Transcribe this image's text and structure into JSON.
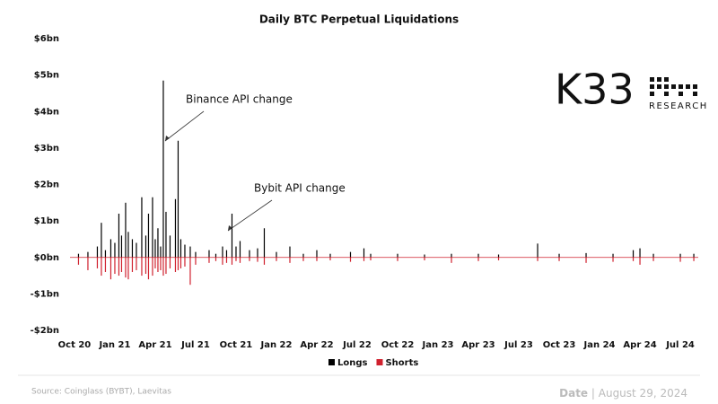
{
  "chart_data": {
    "type": "bar",
    "title": "Daily BTC Perpetual Liquidations",
    "x": [
      0.3,
      1,
      1.7,
      2,
      2.3,
      2.7,
      3,
      3.3,
      3.5,
      3.8,
      4,
      4.3,
      4.6,
      5,
      5.3,
      5.5,
      5.8,
      6,
      6.2,
      6.4,
      6.6,
      6.8,
      7.1,
      7.5,
      7.7,
      7.9,
      8.2,
      8.6,
      9,
      10,
      10.5,
      11,
      11.3,
      11.7,
      12,
      12.3,
      13,
      13.6,
      14.1,
      15,
      16,
      17,
      18,
      19,
      20.5,
      21.5,
      22,
      24,
      26,
      28,
      30,
      31.5,
      34.4,
      36,
      38,
      40,
      41.5,
      42,
      43,
      45,
      46
    ],
    "series": [
      {
        "name": "Longs",
        "color": "#000000",
        "values": [
          0.1,
          0.15,
          0.3,
          0.95,
          0.2,
          0.5,
          0.4,
          1.2,
          0.6,
          1.5,
          0.7,
          0.5,
          0.4,
          1.65,
          0.6,
          1.2,
          1.65,
          0.5,
          0.8,
          0.3,
          4.85,
          1.25,
          0.6,
          1.6,
          3.2,
          0.5,
          0.35,
          0.3,
          0.15,
          0.2,
          0.1,
          0.3,
          0.2,
          1.2,
          0.3,
          0.45,
          0.2,
          0.25,
          0.8,
          0.15,
          0.3,
          0.1,
          0.2,
          0.1,
          0.15,
          0.25,
          0.1,
          0.1,
          0.08,
          0.1,
          0.1,
          0.08,
          0.38,
          0.1,
          0.12,
          0.1,
          0.2,
          0.25,
          0.1,
          0.1,
          0.1
        ]
      },
      {
        "name": "Shorts",
        "color": "#d0212e",
        "values": [
          -0.2,
          -0.35,
          -0.3,
          -0.5,
          -0.4,
          -0.6,
          -0.45,
          -0.5,
          -0.4,
          -0.55,
          -0.6,
          -0.4,
          -0.35,
          -0.5,
          -0.45,
          -0.6,
          -0.5,
          -0.3,
          -0.4,
          -0.35,
          -0.5,
          -0.45,
          -0.3,
          -0.4,
          -0.35,
          -0.3,
          -0.25,
          -0.75,
          -0.2,
          -0.15,
          -0.1,
          -0.2,
          -0.15,
          -0.2,
          -0.1,
          -0.15,
          -0.1,
          -0.12,
          -0.2,
          -0.1,
          -0.15,
          -0.1,
          -0.1,
          -0.08,
          -0.12,
          -0.1,
          -0.08,
          -0.1,
          -0.08,
          -0.15,
          -0.1,
          -0.08,
          -0.1,
          -0.1,
          -0.15,
          -0.12,
          -0.1,
          -0.2,
          -0.1,
          -0.12,
          -0.1
        ]
      }
    ],
    "xlim": [
      -0.33,
      46.33
    ],
    "xticks": [
      {
        "value": 0,
        "label": "Oct 20"
      },
      {
        "value": 3,
        "label": "Jan 21"
      },
      {
        "value": 6,
        "label": "Apr 21"
      },
      {
        "value": 9,
        "label": "Jul 21"
      },
      {
        "value": 12,
        "label": "Oct 21"
      },
      {
        "value": 15,
        "label": "Jan 22"
      },
      {
        "value": 18,
        "label": "Apr 22"
      },
      {
        "value": 21,
        "label": "Jul 22"
      },
      {
        "value": 24,
        "label": "Oct 22"
      },
      {
        "value": 27,
        "label": "Jan 23"
      },
      {
        "value": 30,
        "label": "Apr 23"
      },
      {
        "value": 33,
        "label": "Jul 23"
      },
      {
        "value": 36,
        "label": "Oct 23"
      },
      {
        "value": 39,
        "label": "Jan 24"
      },
      {
        "value": 42,
        "label": "Apr 24"
      },
      {
        "value": 45,
        "label": "Jul 24"
      }
    ],
    "ylim": [
      -2,
      6
    ],
    "yticks": [
      {
        "value": -2,
        "label": "-$2bn"
      },
      {
        "value": -1,
        "label": "-$1bn"
      },
      {
        "value": 0,
        "label": "$0bn"
      },
      {
        "value": 1,
        "label": "$1bn"
      },
      {
        "value": 2,
        "label": "$2bn"
      },
      {
        "value": 3,
        "label": "$3bn"
      },
      {
        "value": 4,
        "label": "$4bn"
      },
      {
        "value": 5,
        "label": "$5bn"
      },
      {
        "value": 6,
        "label": "$6bn"
      }
    ],
    "annotations": [
      "Binance API change",
      "Bybit API change"
    ],
    "logo": {
      "name": "K33",
      "subtitle": "RESEARCH"
    },
    "source": "Source:  Coinglass (BYBT), Laevitas",
    "date_label": "Date",
    "date": "August 29, 2024"
  }
}
